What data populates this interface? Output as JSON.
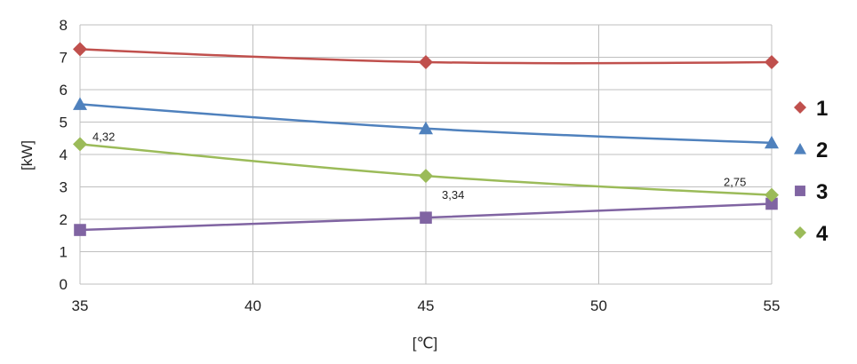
{
  "chart_data": {
    "type": "line",
    "xlabel": "[℃]",
    "ylabel": "[kW]",
    "xlim": [
      35,
      55
    ],
    "ylim": [
      0,
      8
    ],
    "x_ticks": [
      "35",
      "40",
      "45",
      "50",
      "55"
    ],
    "y_ticks": [
      "0",
      "1",
      "2",
      "3",
      "4",
      "5",
      "6",
      "7",
      "8"
    ],
    "grid": true,
    "legend_position": "right",
    "x": [
      35,
      45,
      55
    ],
    "series": [
      {
        "name": "1",
        "values": [
          7.25,
          6.85,
          6.85
        ],
        "color": "#c0504d",
        "marker": "diamond"
      },
      {
        "name": "2",
        "values": [
          5.55,
          4.8,
          4.36
        ],
        "color": "#4f81bd",
        "marker": "triangle"
      },
      {
        "name": "3",
        "values": [
          1.67,
          2.05,
          2.48
        ],
        "color": "#8064a2",
        "marker": "square"
      },
      {
        "name": "4",
        "values": [
          4.32,
          3.34,
          2.75
        ],
        "color": "#9bbb59",
        "marker": "diamond",
        "data_labels": [
          "4,32",
          "3,34",
          "2,75"
        ]
      }
    ]
  }
}
